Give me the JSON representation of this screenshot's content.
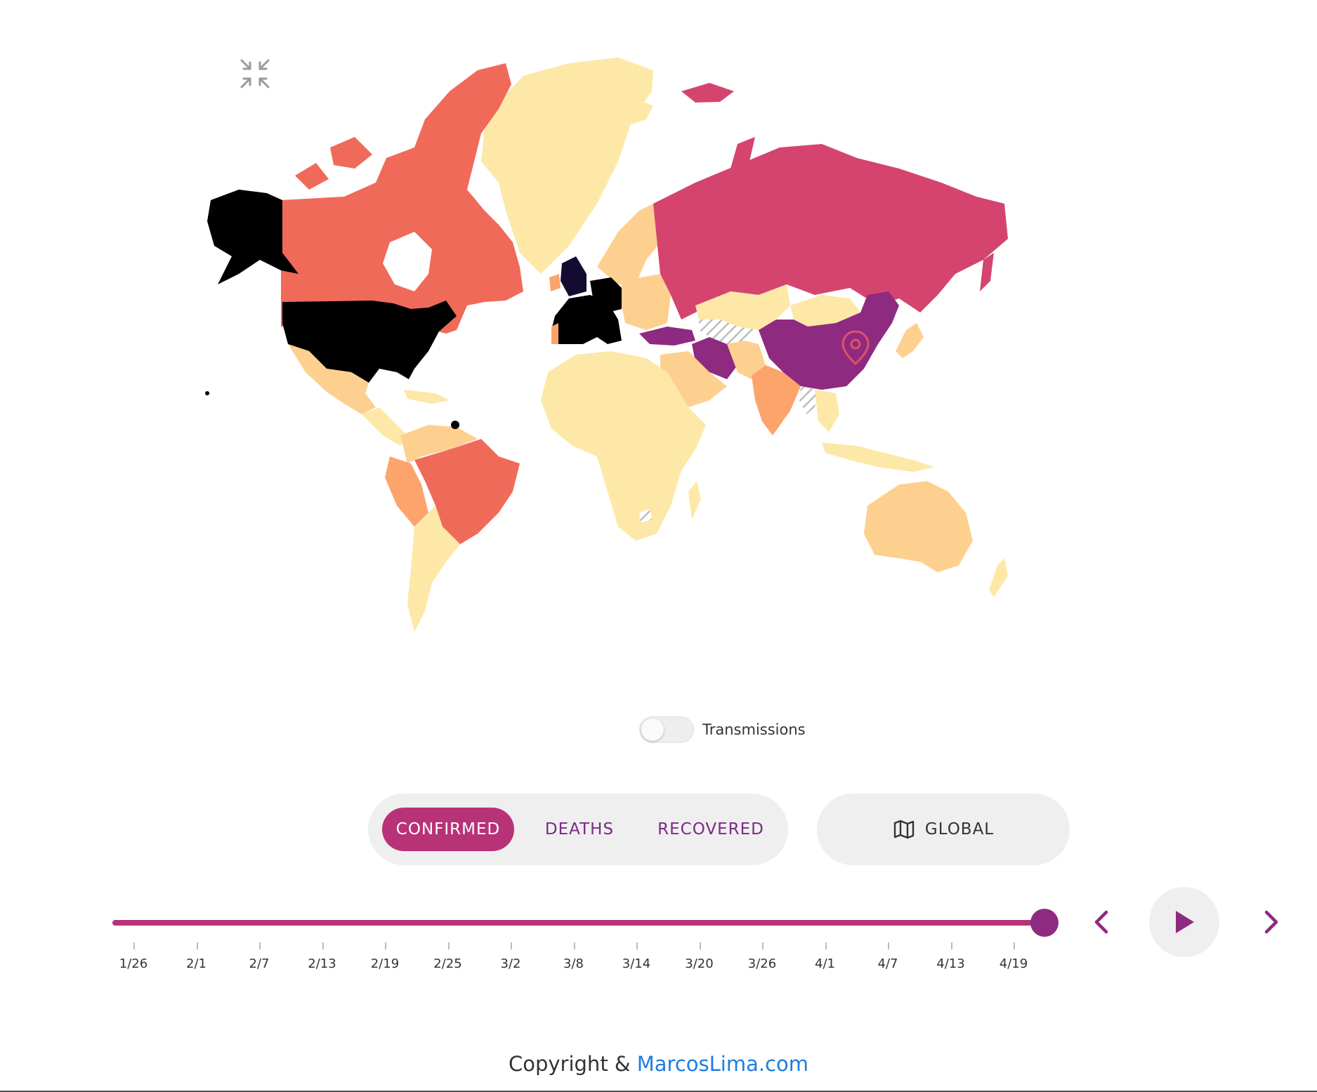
{
  "map": {
    "colors": {
      "ocean": "#ffffff",
      "level1": "#fde8a8",
      "level2": "#fdd090",
      "level3": "#fca46c",
      "level4": "#f06a5a",
      "level5": "#d4446f",
      "level6": "#8e2a80",
      "level7": "#140c30",
      "level8": "#000000",
      "marker": "#e0506a"
    },
    "marker_icon": "map-pin-icon"
  },
  "controls": {
    "collapse_icon": "collapse-arrows-icon",
    "transmissions_label": "Transmissions",
    "transmissions_on": false
  },
  "metric_tabs": {
    "confirmed": "CONFIRMED",
    "deaths": "DEATHS",
    "recovered": "RECOVERED",
    "active": "confirmed"
  },
  "scope": {
    "label": "GLOBAL",
    "icon": "map-icon"
  },
  "timeline": {
    "ticks": [
      "1/26",
      "2/1",
      "2/7",
      "2/13",
      "2/19",
      "2/25",
      "3/2",
      "3/8",
      "3/14",
      "3/20",
      "3/26",
      "4/1",
      "4/7",
      "4/13",
      "4/19"
    ],
    "progress": 1.0,
    "accent": "#b83278",
    "thumb_color": "#8e2a80"
  },
  "playback": {
    "prev_icon": "chevron-left-icon",
    "play_icon": "play-icon",
    "next_icon": "chevron-right-icon"
  },
  "footer": {
    "prefix": "Copyright & ",
    "link_text": "MarcosLima.com",
    "link_color": "#1e7de0"
  }
}
